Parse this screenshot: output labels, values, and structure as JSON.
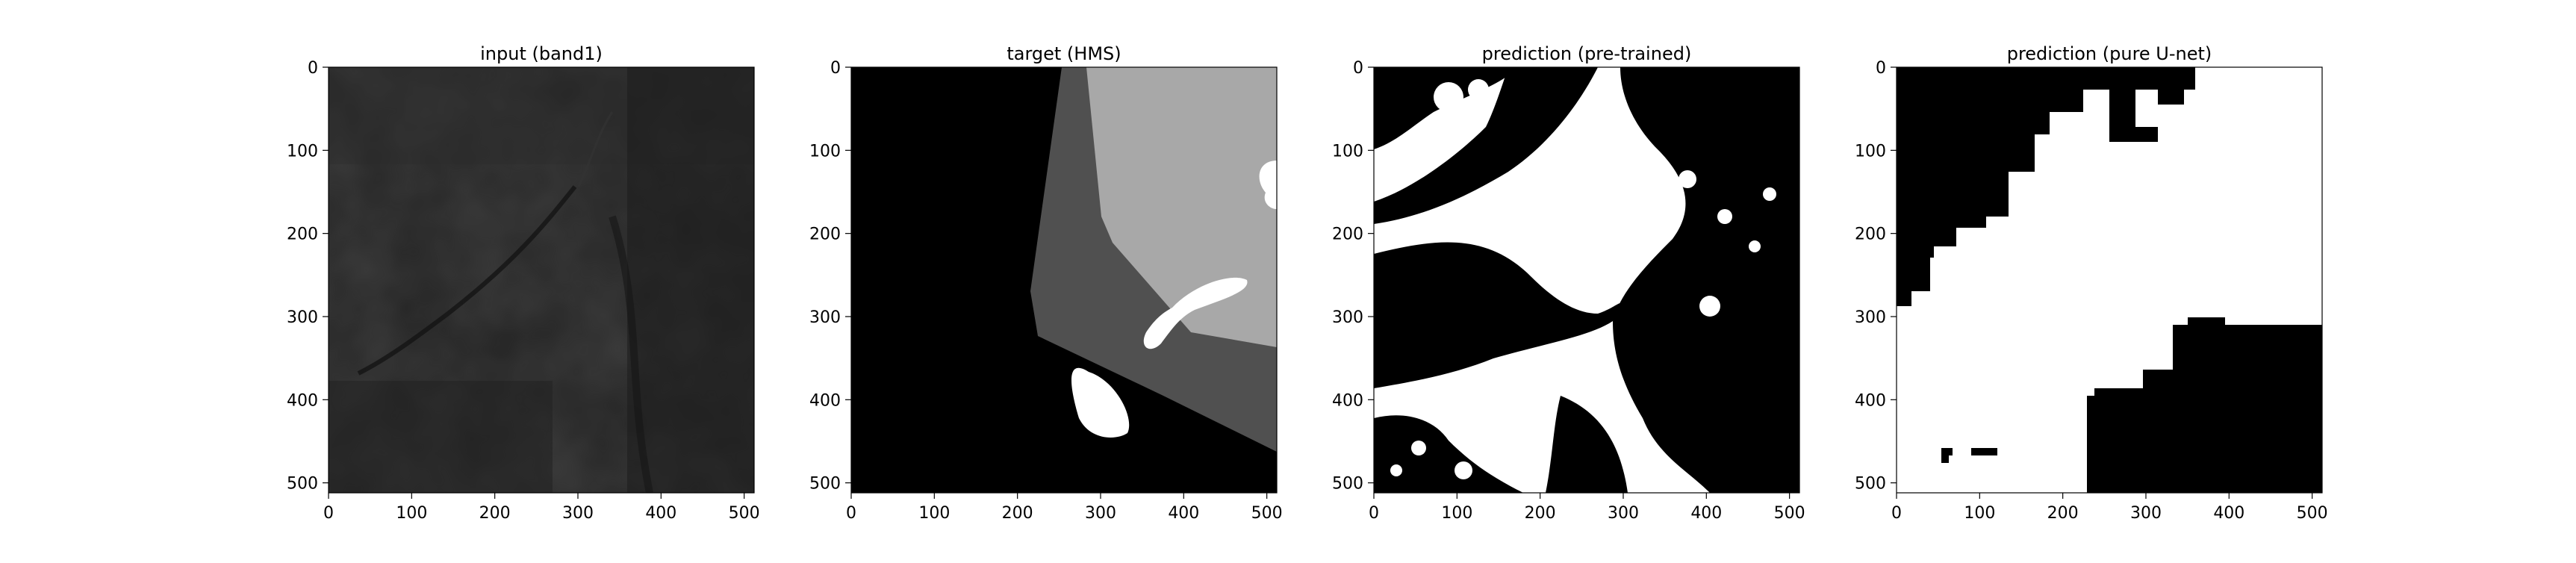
{
  "figure": {
    "panels": [
      {
        "id": "input",
        "title": "input (band1)",
        "type": "image",
        "colormap": "gray",
        "description_tags": [
          "dark-gray-satellite-band",
          "faint-diagonal-features"
        ],
        "xticks": [
          "0",
          "100",
          "200",
          "300",
          "400",
          "500"
        ],
        "yticks": [
          "0",
          "100",
          "200",
          "300",
          "400",
          "500"
        ],
        "extent": [
          0,
          512
        ]
      },
      {
        "id": "target",
        "title": "target (HMS)",
        "type": "image",
        "colormap": "gray",
        "description_tags": [
          "segmentation-mask-black-dark-gray-light-gray-white"
        ],
        "xticks": [
          "0",
          "100",
          "200",
          "300",
          "400",
          "500"
        ],
        "yticks": [
          "0",
          "100",
          "200",
          "300",
          "400",
          "500"
        ],
        "extent": [
          0,
          512
        ]
      },
      {
        "id": "pred-pretrained",
        "title": "prediction (pre-trained)",
        "type": "image",
        "colormap": "binary",
        "description_tags": [
          "black-white-binary-mask-noisy"
        ],
        "xticks": [
          "0",
          "100",
          "200",
          "300",
          "400",
          "500"
        ],
        "yticks": [
          "0",
          "100",
          "200",
          "300",
          "400",
          "500"
        ],
        "extent": [
          0,
          512
        ]
      },
      {
        "id": "pred-unet",
        "title": "prediction (pure U-net)",
        "type": "image",
        "colormap": "binary",
        "description_tags": [
          "black-white-binary-mask-blocky"
        ],
        "xticks": [
          "0",
          "100",
          "200",
          "300",
          "400",
          "500"
        ],
        "yticks": [
          "0",
          "100",
          "200",
          "300",
          "400",
          "500"
        ],
        "extent": [
          0,
          512
        ]
      }
    ]
  },
  "colors": {
    "background": "#ffffff",
    "axis": "#000000",
    "mask_black": "#000000",
    "mask_dark_gray": "#505050",
    "mask_light_gray": "#a8a8a8",
    "mask_white": "#ffffff",
    "input_base": "#242424"
  }
}
